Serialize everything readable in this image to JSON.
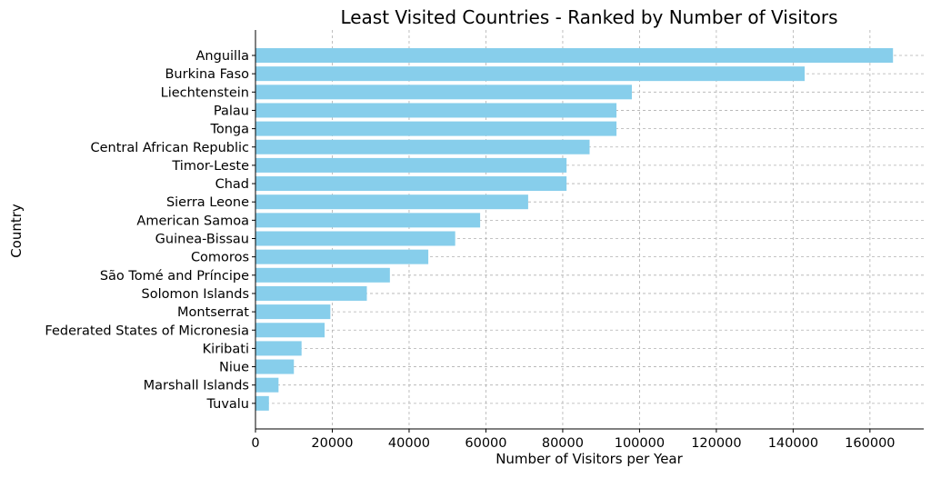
{
  "chart_data": {
    "type": "bar",
    "orientation": "horizontal",
    "title": "Least Visited Countries - Ranked by Number of Visitors",
    "xlabel": "Number of Visitors per Year",
    "ylabel": "Country",
    "xlim": [
      0,
      174000
    ],
    "xticks": [
      0,
      20000,
      40000,
      60000,
      80000,
      100000,
      120000,
      140000,
      160000
    ],
    "grid": true,
    "bar_color": "#87ceeb",
    "categories": [
      "Anguilla",
      "Burkina Faso",
      "Liechtenstein",
      "Palau",
      "Tonga",
      "Central African Republic",
      "Timor-Leste",
      "Chad",
      "Sierra Leone",
      "American Samoa",
      "Guinea-Bissau",
      "Comoros",
      "São Tomé and Príncipe",
      "Solomon Islands",
      "Montserrat",
      "Federated States of Micronesia",
      "Kiribati",
      "Niue",
      "Marshall Islands",
      "Tuvalu"
    ],
    "values": [
      166000,
      143000,
      98000,
      94000,
      94000,
      87000,
      81000,
      81000,
      71000,
      58500,
      52000,
      45000,
      35000,
      29000,
      19500,
      18000,
      12000,
      10000,
      6000,
      3500
    ]
  }
}
